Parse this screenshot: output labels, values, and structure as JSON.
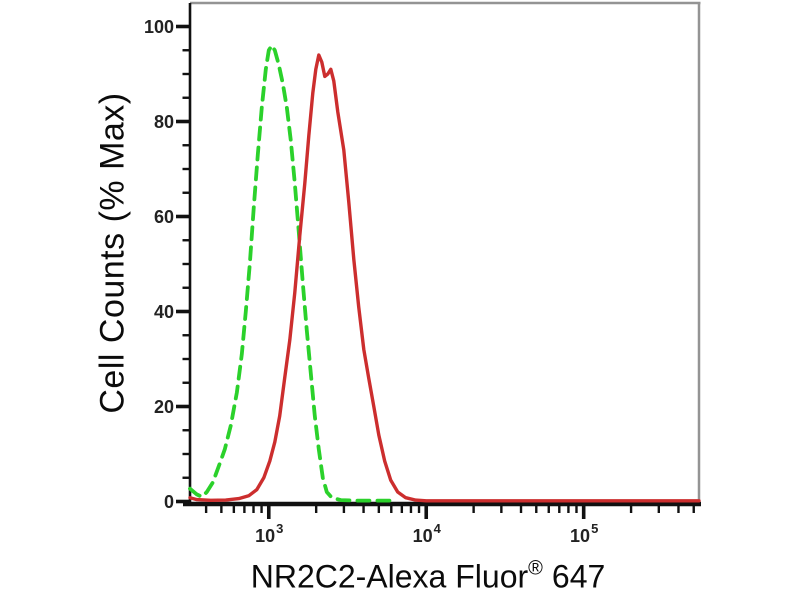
{
  "chart_data": {
    "type": "line",
    "subtype": "flow-cytometry-histogram",
    "title": "",
    "ylabel": "Cell Counts (% Max)",
    "xlabel": {
      "main": "NR2C2-Alexa Fluor",
      "sup": "®",
      "suffix": "647"
    },
    "x_scale": "log",
    "xlim": [
      316,
      540000
    ],
    "ylim": [
      0,
      100
    ],
    "grid": false,
    "legend": "none",
    "y_ticks": [
      {
        "value": 0,
        "label": "0"
      },
      {
        "value": 20,
        "label": "20"
      },
      {
        "value": 40,
        "label": "40"
      },
      {
        "value": 60,
        "label": "60"
      },
      {
        "value": 80,
        "label": "80"
      },
      {
        "value": 100,
        "label": "100"
      }
    ],
    "y_minor_step": 5,
    "x_ticks": [
      {
        "value": 1000,
        "base": "10",
        "exp": "3"
      },
      {
        "value": 10000,
        "base": "10",
        "exp": "4"
      },
      {
        "value": 100000,
        "base": "10",
        "exp": "5"
      }
    ],
    "colors": {
      "axis": "#111111",
      "frame_light": "#949494",
      "tick_label": "#222222",
      "green_series": "#2bd12b",
      "red_series": "#cc2e2e"
    },
    "series": [
      {
        "name": "green-dashed",
        "color": "#2bd12b",
        "line_style": "dashed",
        "points": [
          [
            316,
            2.7
          ],
          [
            349,
            1.5
          ],
          [
            376,
            1.0
          ],
          [
            404,
            2.0
          ],
          [
            441,
            4.0
          ],
          [
            482,
            7.5
          ],
          [
            526,
            11
          ],
          [
            574,
            16
          ],
          [
            627,
            23
          ],
          [
            674,
            31
          ],
          [
            715,
            40
          ],
          [
            758,
            50
          ],
          [
            803,
            62
          ],
          [
            852,
            73
          ],
          [
            903,
            83
          ],
          [
            957,
            91
          ],
          [
            1000,
            95
          ],
          [
            1045,
            96
          ],
          [
            1092,
            95
          ],
          [
            1157,
            92
          ],
          [
            1227,
            88
          ],
          [
            1301,
            83
          ],
          [
            1379,
            76
          ],
          [
            1463,
            67
          ],
          [
            1550,
            57
          ],
          [
            1644,
            46
          ],
          [
            1743,
            36
          ],
          [
            1848,
            27
          ],
          [
            1959,
            18
          ],
          [
            2077,
            11
          ],
          [
            2202,
            5
          ],
          [
            2335,
            2
          ],
          [
            2512,
            0.8
          ],
          [
            2865,
            0.3
          ],
          [
            3568,
            0.2
          ],
          [
            4779,
            0.2
          ],
          [
            6220,
            0.2
          ]
        ]
      },
      {
        "name": "red-solid",
        "color": "#cc2e2e",
        "line_style": "solid",
        "points": [
          [
            316,
            0.8
          ],
          [
            349,
            0.4
          ],
          [
            428,
            0.25
          ],
          [
            533,
            0.3
          ],
          [
            645,
            0.6
          ],
          [
            746,
            1.2
          ],
          [
            839,
            2.5
          ],
          [
            930,
            5
          ],
          [
            1015,
            8.5
          ],
          [
            1092,
            12.5
          ],
          [
            1174,
            18
          ],
          [
            1263,
            26
          ],
          [
            1359,
            34
          ],
          [
            1463,
            44
          ],
          [
            1573,
            56
          ],
          [
            1693,
            67
          ],
          [
            1795,
            77
          ],
          [
            1903,
            86
          ],
          [
            1989,
            91
          ],
          [
            2077,
            94
          ],
          [
            2171,
            92.5
          ],
          [
            2268,
            89.5
          ],
          [
            2369,
            90
          ],
          [
            2476,
            91
          ],
          [
            2587,
            88.5
          ],
          [
            2742,
            82
          ],
          [
            2994,
            74
          ],
          [
            3222,
            63
          ],
          [
            3465,
            51
          ],
          [
            3727,
            41
          ],
          [
            4011,
            32
          ],
          [
            4314,
            26
          ],
          [
            4642,
            20
          ],
          [
            4995,
            14
          ],
          [
            5452,
            8.5
          ],
          [
            5951,
            4.5
          ],
          [
            6592,
            2
          ],
          [
            7411,
            0.8
          ],
          [
            8577,
            0.3
          ],
          [
            10000,
            0.15
          ],
          [
            540000,
            0.15
          ]
        ]
      }
    ]
  }
}
